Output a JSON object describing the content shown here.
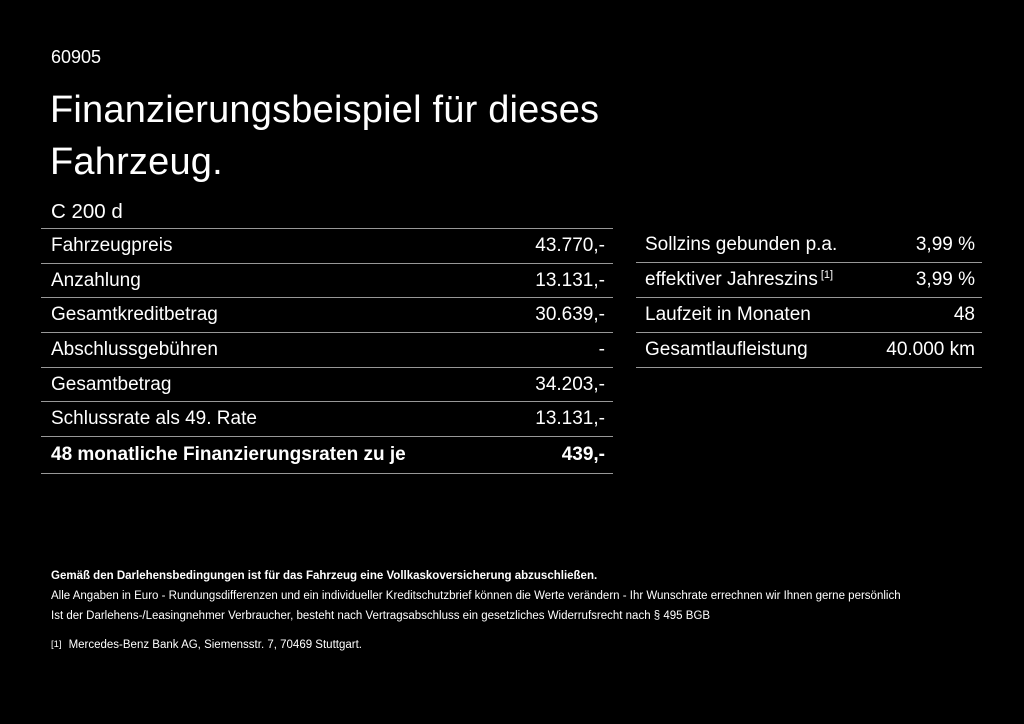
{
  "page": {
    "background_color": "#000000",
    "text_color": "#ffffff",
    "divider_color": "#989898"
  },
  "header": {
    "ref_number": "60905",
    "title_line1": "Finanzierungsbeispiel für dieses",
    "title_line2": "Fahrzeug.",
    "model": "C 200 d"
  },
  "financing_table": {
    "rows": [
      {
        "label": "Fahrzeugpreis",
        "value": "43.770,-"
      },
      {
        "label": "Anzahlung",
        "value": "13.131,-"
      },
      {
        "label": "Gesamtkreditbetrag",
        "value": "30.639,-"
      },
      {
        "label": "Abschlussgebühren",
        "value": "-"
      },
      {
        "label": "Gesamtbetrag",
        "value": "34.203,-"
      },
      {
        "label": "Schlussrate als 49. Rate",
        "value": "13.131,-"
      },
      {
        "label": "48 monatliche Finanzierungsraten zu je",
        "value": "439,-"
      }
    ]
  },
  "conditions_table": {
    "rows": [
      {
        "label": "Sollzins gebunden p.a.",
        "sup": "",
        "value": "3,99 %"
      },
      {
        "label": "effektiver Jahreszins",
        "sup": "[1]",
        "value": "3,99 %"
      },
      {
        "label": "Laufzeit in Monaten",
        "sup": "",
        "value": "48"
      },
      {
        "label": "Gesamtlaufleistung",
        "sup": "",
        "value": "40.000 km"
      }
    ]
  },
  "footer": {
    "insurance_note": "Gemäß den Darlehensbedingungen ist für das Fahrzeug eine Vollkaskoversicherung abzuschließen.",
    "disclaimer_1": "Alle Angaben in Euro - Rundungsdifferenzen und ein individueller Kreditschutzbrief können die Werte verändern - Ihr Wunschrate errechnen wir Ihnen gerne persönlich",
    "disclaimer_2": "Ist der Darlehens-/Leasingnehmer Verbraucher, besteht nach Vertragsabschluss ein gesetzliches Widerrufsrecht nach § 495 BGB",
    "footnote_marker": "[1]",
    "footnote_text": "Mercedes-Benz Bank AG, Siemensstr. 7, 70469 Stuttgart."
  }
}
